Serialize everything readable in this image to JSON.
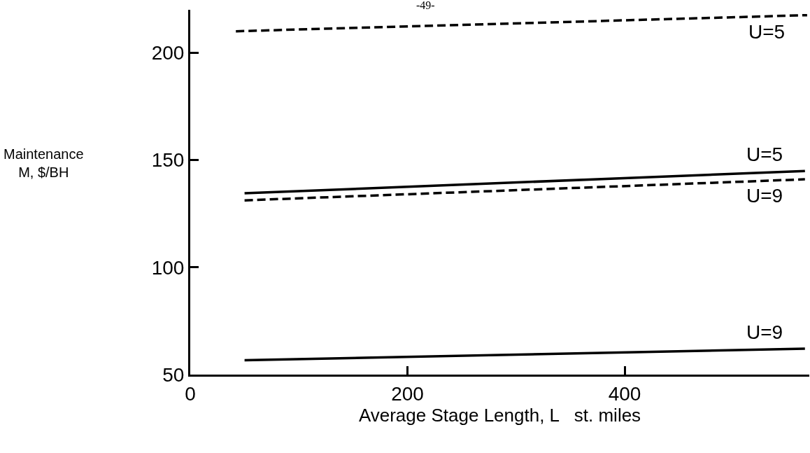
{
  "chart_data": {
    "type": "line",
    "xlabel": "Average Stage Length, L   st. miles",
    "ylabel": "Maintenance\nM, $/BH",
    "xlim": [
      0,
      570
    ],
    "xticks": [
      0,
      200,
      400
    ],
    "ylim": [
      50,
      220
    ],
    "yticks": [
      50,
      100,
      150,
      200
    ],
    "legend": false,
    "marker": "none",
    "series": [
      {
        "name": "U=5",
        "color": "#000000",
        "line_style": "dashed",
        "x": [
          42,
          568
        ],
        "values": [
          210,
          217.5
        ]
      },
      {
        "name": "U=5",
        "color": "#000000",
        "line_style": "solid",
        "x": [
          50,
          566
        ],
        "values": [
          134.5,
          144.9
        ]
      },
      {
        "name": "U=9",
        "color": "#000000",
        "line_style": "dashed",
        "x": [
          50,
          566
        ],
        "values": [
          131.2,
          141
        ]
      },
      {
        "name": "U=9",
        "color": "#000000",
        "line_style": "solid",
        "x": [
          50,
          566
        ],
        "values": [
          56.7,
          62.1
        ]
      }
    ],
    "annotations": [
      "-49-"
    ]
  }
}
